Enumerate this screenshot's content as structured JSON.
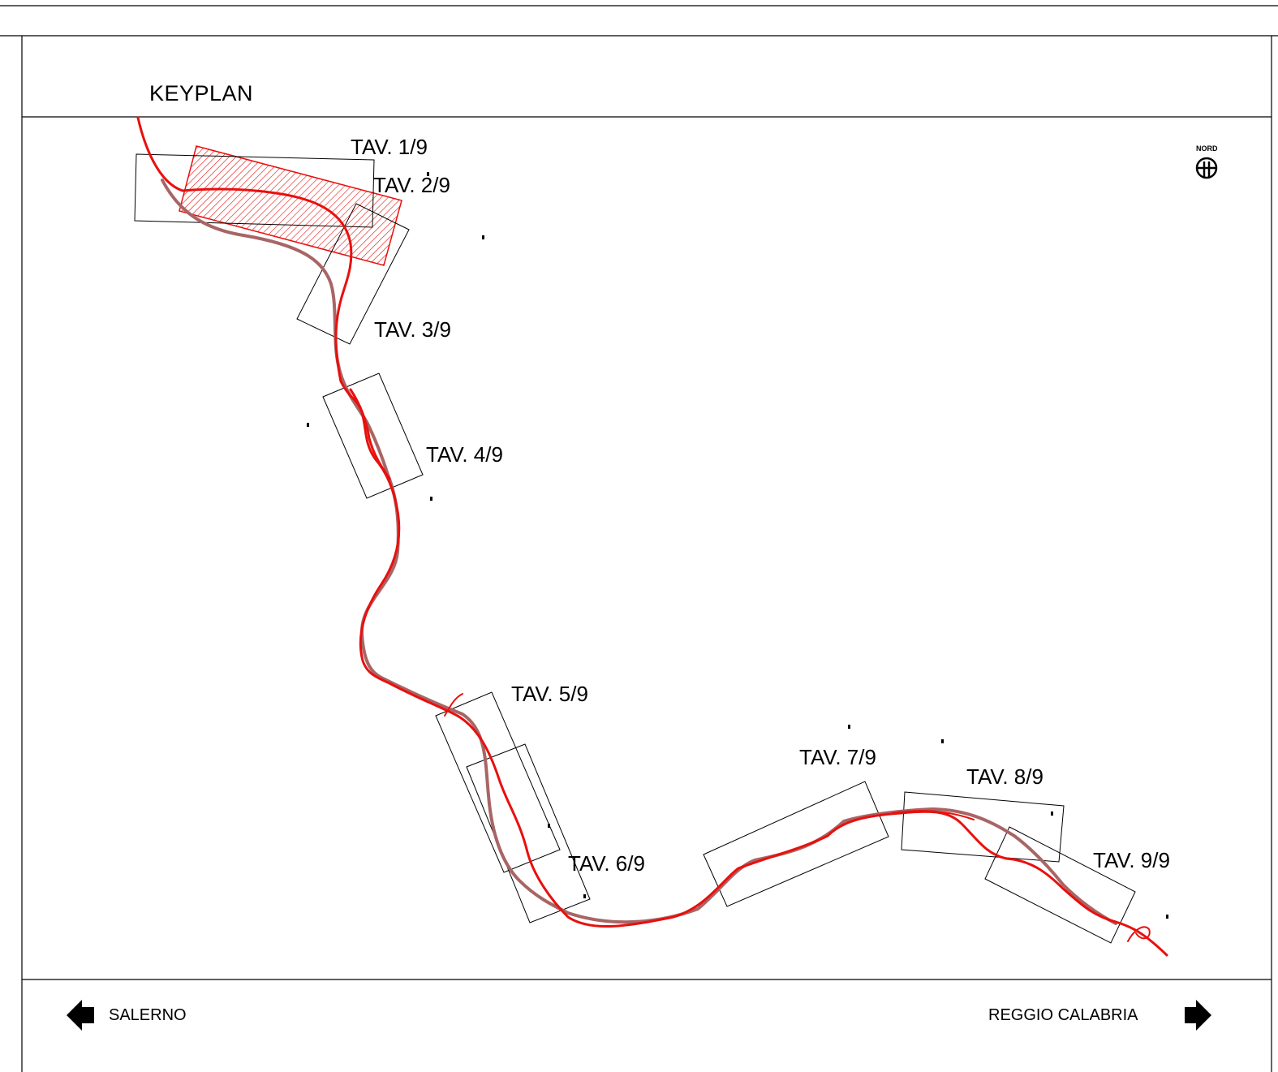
{
  "keyplan": {
    "title": "KEYPLAN",
    "north_label": "NORD",
    "highlighted_sheet": "TAV. 2/9",
    "sheets": [
      {
        "label": "TAV. 1/9"
      },
      {
        "label": "TAV. 2/9"
      },
      {
        "label": "TAV. 3/9"
      },
      {
        "label": "TAV. 4/9"
      },
      {
        "label": "TAV. 5/9"
      },
      {
        "label": "TAV. 6/9"
      },
      {
        "label": "TAV. 7/9"
      },
      {
        "label": "TAV. 8/9"
      },
      {
        "label": "TAV. 9/9"
      }
    ],
    "directions": {
      "left": "SALERNO",
      "right": "REGGIO CALABRIA"
    },
    "colors": {
      "route_main": "#e8100e",
      "route_old": "#a86565",
      "highlight_fill": "#e8100e",
      "frame": "#000000"
    }
  }
}
